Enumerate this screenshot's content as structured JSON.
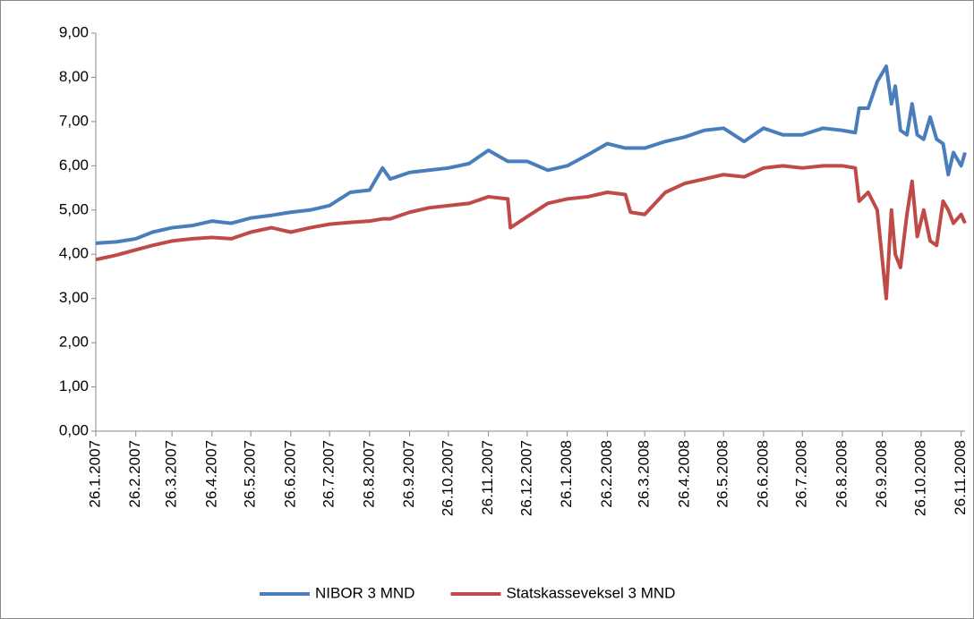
{
  "chart_data": {
    "type": "line",
    "x": [
      "26.1.2007",
      "11.2.2007",
      "26.2.2007",
      "11.3.2007",
      "26.3.2007",
      "11.4.2007",
      "26.4.2007",
      "11.5.2007",
      "26.5.2007",
      "11.6.2007",
      "26.6.2007",
      "11.7.2007",
      "26.7.2007",
      "11.8.2007",
      "26.8.2007",
      "5.9.2007",
      "11.9.2007",
      "26.9.2007",
      "11.10.2007",
      "26.10.2007",
      "11.11.2007",
      "26.11.2007",
      "11.12.2007",
      "13.12.2007",
      "26.12.2007",
      "11.1.2008",
      "26.1.2008",
      "11.2.2008",
      "26.2.2008",
      "11.3.2008",
      "15.3.2008",
      "26.3.2008",
      "11.4.2008",
      "26.4.2008",
      "11.5.2008",
      "26.5.2008",
      "11.6.2008",
      "26.6.2008",
      "11.7.2008",
      "26.7.2008",
      "11.8.2008",
      "26.8.2008",
      "5.9.2008",
      "8.9.2008",
      "15.9.2008",
      "22.9.2008",
      "29.9.2008",
      "3.10.2008",
      "6.10.2008",
      "10.10.2008",
      "15.10.2008",
      "19.10.2008",
      "23.10.2008",
      "28.10.2008",
      "2.11.2008",
      "7.11.2008",
      "12.11.2008",
      "16.11.2008",
      "20.11.2008",
      "26.11.2008",
      "29.11.2008"
    ],
    "series": [
      {
        "name": "NIBOR 3 MND",
        "color": "#4a7ebb",
        "values": [
          4.25,
          4.28,
          4.35,
          4.5,
          4.6,
          4.65,
          4.75,
          4.7,
          4.82,
          4.88,
          4.95,
          5.0,
          5.1,
          5.4,
          5.45,
          5.95,
          5.7,
          5.85,
          5.9,
          5.95,
          6.05,
          6.35,
          6.1,
          6.1,
          6.1,
          5.9,
          6.0,
          6.25,
          6.5,
          6.4,
          6.4,
          6.4,
          6.55,
          6.65,
          6.8,
          6.85,
          6.55,
          6.85,
          6.7,
          6.7,
          6.85,
          6.8,
          6.75,
          7.3,
          7.3,
          7.9,
          8.25,
          7.4,
          7.8,
          6.8,
          6.7,
          7.4,
          6.7,
          6.6,
          7.1,
          6.6,
          6.5,
          5.8,
          6.3,
          6.0,
          6.3
        ]
      },
      {
        "name": "Statskasseveksel 3 MND",
        "color": "#be4b48",
        "values": [
          3.88,
          3.98,
          4.1,
          4.2,
          4.3,
          4.35,
          4.38,
          4.35,
          4.5,
          4.6,
          4.5,
          4.6,
          4.68,
          4.72,
          4.75,
          4.8,
          4.8,
          4.95,
          5.05,
          5.1,
          5.15,
          5.3,
          5.25,
          4.6,
          4.85,
          5.15,
          5.25,
          5.3,
          5.4,
          5.35,
          4.95,
          4.9,
          5.4,
          5.6,
          5.7,
          5.8,
          5.75,
          5.95,
          6.0,
          5.95,
          6.0,
          6.0,
          5.95,
          5.2,
          5.4,
          5.0,
          3.0,
          5.0,
          4.0,
          3.7,
          4.9,
          5.65,
          4.4,
          5.0,
          4.3,
          4.2,
          5.2,
          5.0,
          4.7,
          4.9,
          4.7
        ]
      }
    ],
    "xlim": [
      "26.1.2007",
      "29.11.2008"
    ],
    "xticks": [
      "26.1.2007",
      "26.2.2007",
      "26.3.2007",
      "26.4.2007",
      "26.5.2007",
      "26.6.2007",
      "26.7.2007",
      "26.8.2007",
      "26.9.2007",
      "26.10.2007",
      "26.11.2007",
      "26.12.2007",
      "26.1.2008",
      "26.2.2008",
      "26.3.2008",
      "26.4.2008",
      "26.5.2008",
      "26.6.2008",
      "26.7.2008",
      "26.8.2008",
      "26.9.2008",
      "26.10.2008",
      "26.11.2008"
    ],
    "ylim": [
      0,
      9
    ],
    "yticks": [
      {
        "value": 0,
        "label": "0,00"
      },
      {
        "value": 1,
        "label": "1,00"
      },
      {
        "value": 2,
        "label": "2,00"
      },
      {
        "value": 3,
        "label": "3,00"
      },
      {
        "value": 4,
        "label": "4,00"
      },
      {
        "value": 5,
        "label": "5,00"
      },
      {
        "value": 6,
        "label": "6,00"
      },
      {
        "value": 7,
        "label": "7,00"
      },
      {
        "value": 8,
        "label": "8,00"
      },
      {
        "value": 9,
        "label": "9,00"
      }
    ],
    "legend": "bottom"
  }
}
